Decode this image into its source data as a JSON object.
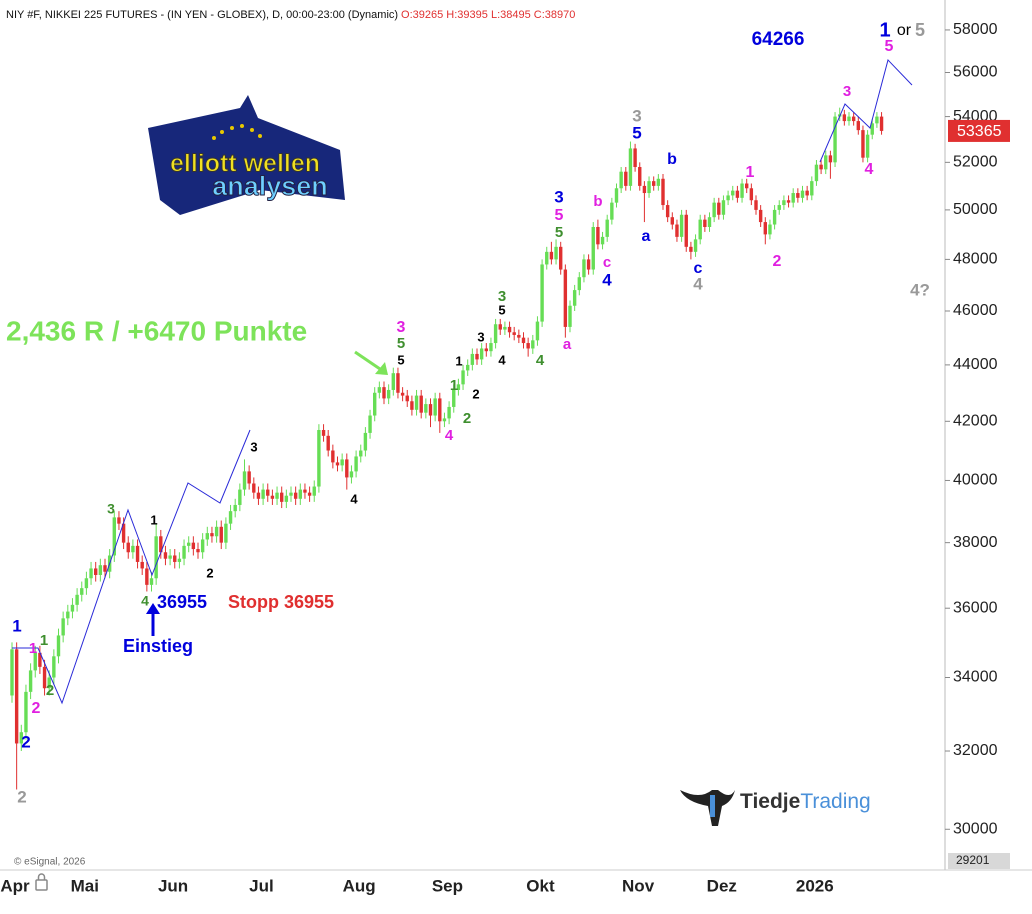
{
  "chart_data": {
    "type": "candlestick",
    "title": "NIY #F, NIKKEI 225 FUTURES - (IN YEN - GLOBEX), D, 00:00-23:00 (Dynamic)",
    "subtitle": "O:39265 H:39395 L:38495 C:38970",
    "credit": "© eSignal, 2026",
    "logo_top": [
      "elliott wellen",
      "analysen"
    ],
    "logo_bottom": [
      "Tiedje",
      "Trading"
    ],
    "log_scale": true,
    "grid": false,
    "up_color": "#66dd55",
    "down_color": "#e03030",
    "ylim": [
      29201,
      59450
    ],
    "yticks": [
      30000,
      32000,
      34000,
      36000,
      38000,
      40000,
      42000,
      44000,
      46000,
      48000,
      50000,
      52000,
      54000,
      56000,
      58000
    ],
    "categories": [
      "Apr",
      null,
      null,
      null,
      null,
      null,
      null,
      null,
      null,
      null,
      null,
      null,
      null,
      null,
      null,
      "Mai",
      null,
      null,
      null,
      null,
      null,
      null,
      null,
      null,
      null,
      null,
      null,
      null,
      null,
      null,
      null,
      null,
      null,
      null,
      "Jun",
      null,
      null,
      null,
      null,
      null,
      null,
      null,
      null,
      null,
      null,
      null,
      null,
      null,
      null,
      null,
      null,
      null,
      null,
      "Jul",
      null,
      null,
      null,
      null,
      null,
      null,
      null,
      null,
      null,
      null,
      null,
      null,
      null,
      null,
      null,
      null,
      null,
      null,
      null,
      null,
      "Aug",
      null,
      null,
      null,
      null,
      null,
      null,
      null,
      null,
      null,
      null,
      null,
      null,
      null,
      null,
      null,
      null,
      null,
      null,
      "Sep",
      null,
      null,
      null,
      null,
      null,
      null,
      null,
      null,
      null,
      null,
      null,
      null,
      null,
      null,
      null,
      null,
      null,
      null,
      null,
      "Okt",
      null,
      null,
      null,
      null,
      null,
      null,
      null,
      null,
      null,
      null,
      null,
      null,
      null,
      null,
      null,
      null,
      null,
      null,
      null,
      null,
      "Nov",
      null,
      null,
      null,
      null,
      null,
      null,
      null,
      null,
      null,
      null,
      null,
      null,
      null,
      null,
      null,
      null,
      null,
      "Dez",
      null,
      null,
      null,
      null,
      null,
      null,
      null,
      null,
      null,
      null,
      null,
      null,
      null,
      null,
      null,
      null,
      null,
      null,
      null,
      "2026",
      null,
      null,
      null,
      null,
      null,
      null,
      null,
      null,
      null,
      null,
      null,
      null,
      null,
      null,
      null
    ],
    "open": [
      33500,
      34800,
      32200,
      32500,
      33600,
      34200,
      34700,
      34300,
      33700,
      34000,
      34600,
      35200,
      35700,
      35900,
      36100,
      36400,
      36600,
      36900,
      37200,
      37000,
      37300,
      37100,
      37600,
      38800,
      38600,
      38000,
      37700,
      37900,
      37400,
      37200,
      36700,
      36900,
      38200,
      37700,
      37500,
      37600,
      37400,
      37500,
      37900,
      38000,
      37800,
      37700,
      38100,
      38300,
      38200,
      38500,
      38000,
      38600,
      39000,
      39200,
      39700,
      40300,
      39900,
      39600,
      39400,
      39700,
      39500,
      39400,
      39600,
      39300,
      39500,
      39600,
      39400,
      39700,
      39600,
      39500,
      39800,
      41700,
      41500,
      41000,
      40600,
      40500,
      40700,
      40100,
      40300,
      40800,
      41000,
      41600,
      42200,
      43000,
      43200,
      42800,
      43100,
      43700,
      43000,
      42900,
      42700,
      42400,
      42900,
      42300,
      42600,
      42200,
      42800,
      42000,
      42100,
      42500,
      43100,
      43300,
      43800,
      44000,
      44400,
      44200,
      44600,
      44500,
      44800,
      45500,
      45300,
      45400,
      45200,
      45100,
      45000,
      44800,
      44600,
      44900,
      45600,
      47800,
      48300,
      48000,
      48500,
      47600,
      45400,
      46200,
      46800,
      47300,
      48000,
      47600,
      49300,
      48600,
      48900,
      49600,
      50300,
      50900,
      51600,
      51000,
      52600,
      51800,
      51000,
      50700,
      51200,
      51000,
      51300,
      50200,
      49700,
      49400,
      48900,
      49800,
      48500,
      48300,
      48800,
      49600,
      49300,
      49700,
      50300,
      49800,
      50400,
      50600,
      50800,
      50500,
      51100,
      50900,
      50400,
      50000,
      49500,
      49000,
      49400,
      50000,
      50200,
      50400,
      50300,
      50700,
      50500,
      50800,
      50600,
      51200,
      51900,
      51700,
      52300,
      52000,
      54000,
      54100,
      53800,
      54000,
      53800,
      53400,
      52200,
      53200,
      53700,
      54000
    ],
    "high": [
      35000,
      35000,
      32700,
      33800,
      34400,
      34900,
      34900,
      34500,
      34200,
      34800,
      35400,
      35900,
      36100,
      36300,
      36600,
      36800,
      37100,
      37400,
      37400,
      37500,
      37500,
      37800,
      39000,
      39000,
      38800,
      38200,
      38100,
      38100,
      37600,
      37400,
      37100,
      38600,
      38400,
      37900,
      37800,
      37800,
      37700,
      38100,
      38200,
      38200,
      38000,
      38300,
      38500,
      38500,
      38700,
      38700,
      38800,
      39200,
      39400,
      39900,
      40700,
      40500,
      40100,
      39800,
      39900,
      39900,
      39700,
      39800,
      39800,
      39700,
      39800,
      39800,
      39900,
      39900,
      39800,
      40000,
      41900,
      41900,
      41700,
      41200,
      40800,
      40900,
      40900,
      40500,
      41000,
      41200,
      41800,
      42400,
      43200,
      43400,
      43400,
      43300,
      43900,
      43900,
      43200,
      43100,
      42900,
      43100,
      43100,
      42800,
      42800,
      43000,
      43000,
      42300,
      42700,
      43300,
      43500,
      44000,
      44200,
      44600,
      44600,
      44800,
      44800,
      45000,
      45700,
      45700,
      45600,
      45600,
      45400,
      45300,
      45200,
      45000,
      45100,
      45800,
      48000,
      48500,
      48700,
      48800,
      48700,
      47800,
      46400,
      47000,
      47500,
      48200,
      48200,
      49500,
      49600,
      49100,
      49800,
      50500,
      51100,
      51800,
      51800,
      52900,
      52800,
      52000,
      51200,
      51400,
      51400,
      51500,
      51500,
      50400,
      49900,
      49600,
      50000,
      50000,
      48700,
      49000,
      49800,
      49800,
      49900,
      50500,
      50500,
      50600,
      50800,
      51000,
      51000,
      51300,
      51300,
      51100,
      50600,
      50200,
      49700,
      49600,
      50200,
      50400,
      50600,
      50600,
      50900,
      50900,
      51000,
      51000,
      51400,
      52100,
      52100,
      52500,
      52500,
      54200,
      54400,
      54300,
      54200,
      54200,
      54000,
      53600,
      53400,
      53900,
      54200,
      54200
    ],
    "low": [
      33300,
      31000,
      32000,
      32300,
      33400,
      34000,
      34100,
      33500,
      33500,
      33800,
      34400,
      35000,
      35500,
      35700,
      35900,
      36200,
      36400,
      36700,
      36800,
      36800,
      36900,
      36900,
      37400,
      38400,
      37800,
      37500,
      37500,
      37200,
      37000,
      36500,
      36500,
      36700,
      37500,
      37300,
      37300,
      37200,
      37200,
      37300,
      37700,
      37600,
      37500,
      37500,
      37900,
      38000,
      38000,
      37800,
      37800,
      38400,
      38800,
      39000,
      39500,
      39700,
      39400,
      39200,
      39200,
      39300,
      39200,
      39200,
      39100,
      39100,
      39300,
      39200,
      39200,
      39400,
      39300,
      39300,
      39600,
      41300,
      40800,
      40400,
      40300,
      40300,
      39700,
      39900,
      40100,
      40600,
      40800,
      41400,
      42000,
      42800,
      42600,
      42600,
      42900,
      42800,
      42700,
      42500,
      42200,
      42200,
      42100,
      42100,
      41800,
      42000,
      41600,
      41800,
      41900,
      42300,
      42900,
      43100,
      43600,
      43800,
      44000,
      44000,
      44300,
      44300,
      44600,
      45100,
      45100,
      45000,
      44900,
      44800,
      44600,
      44300,
      44400,
      44700,
      45400,
      47600,
      47800,
      47800,
      47400,
      45000,
      45200,
      46000,
      46600,
      47100,
      47400,
      47400,
      48400,
      48400,
      48700,
      49400,
      50100,
      50700,
      50800,
      50800,
      51600,
      50800,
      49500,
      50500,
      50800,
      50800,
      50000,
      49500,
      49200,
      48700,
      48700,
      48300,
      48000,
      48100,
      48600,
      49100,
      49100,
      49500,
      49600,
      49600,
      50200,
      50400,
      50300,
      50300,
      50700,
      50200,
      49800,
      49300,
      48600,
      48800,
      49200,
      49800,
      50000,
      50100,
      50100,
      50300,
      50300,
      50400,
      50400,
      51000,
      51500,
      51500,
      51300,
      51800,
      53800,
      53600,
      53600,
      53600,
      53200,
      52000,
      52000,
      53000,
      53500,
      53200
    ],
    "close": [
      34800,
      32200,
      32500,
      33600,
      34200,
      34700,
      34300,
      33700,
      34000,
      34600,
      35200,
      35700,
      35900,
      36100,
      36400,
      36600,
      36900,
      37200,
      37000,
      37300,
      37100,
      37600,
      38800,
      38600,
      38000,
      37700,
      37900,
      37400,
      37200,
      36700,
      36900,
      38200,
      37700,
      37500,
      37600,
      37400,
      37500,
      37900,
      38000,
      37800,
      37700,
      38100,
      38300,
      38200,
      38500,
      38000,
      38600,
      39000,
      39200,
      39700,
      40300,
      39900,
      39600,
      39400,
      39700,
      39500,
      39400,
      39600,
      39300,
      39500,
      39600,
      39400,
      39700,
      39600,
      39500,
      39800,
      41700,
      41500,
      41000,
      40600,
      40500,
      40700,
      40100,
      40300,
      40800,
      41000,
      41600,
      42200,
      43000,
      43200,
      42800,
      43100,
      43700,
      43000,
      42900,
      42700,
      42400,
      42900,
      42300,
      42600,
      42200,
      42800,
      42000,
      42100,
      42500,
      43100,
      43300,
      43800,
      44000,
      44400,
      44200,
      44600,
      44500,
      44800,
      45500,
      45300,
      45400,
      45200,
      45100,
      45000,
      44800,
      44600,
      44900,
      45600,
      47800,
      48300,
      48000,
      48500,
      47600,
      45400,
      46200,
      46800,
      47300,
      48000,
      47600,
      49300,
      48600,
      48900,
      49600,
      50300,
      50900,
      51600,
      51000,
      52600,
      51800,
      51000,
      50700,
      51200,
      51000,
      51300,
      50200,
      49700,
      49400,
      48900,
      49800,
      48500,
      48300,
      48800,
      49600,
      49300,
      49700,
      50300,
      49800,
      50400,
      50600,
      50800,
      50500,
      51100,
      50900,
      50400,
      50000,
      49500,
      49000,
      49400,
      50000,
      50200,
      50400,
      50300,
      50700,
      50500,
      50800,
      50600,
      51200,
      51900,
      51700,
      52300,
      52000,
      54000,
      54100,
      53800,
      54000,
      53800,
      53400,
      52200,
      53200,
      53700,
      54000,
      53365
    ],
    "annotations": [
      {
        "text": "1",
        "color": "#0000dd"
      },
      {
        "text": "1",
        "color": "#e020e0"
      },
      {
        "text": "1",
        "color": "#3f8f2f"
      },
      {
        "text": "2",
        "color": "#e020e0"
      },
      {
        "text": "2",
        "color": "#3f8f2f"
      },
      {
        "text": "2",
        "color": "#0000dd"
      },
      {
        "text": "2",
        "color": "#999999"
      },
      {
        "text": "3",
        "color": "#3f8f2f"
      },
      {
        "text": "4",
        "color": "#3f8f2f"
      },
      {
        "text": "36955",
        "color": "#0000dd"
      },
      {
        "text": "Stopp 36955",
        "color": "#e03030"
      },
      {
        "text": "Einstieg",
        "color": "#0000dd"
      },
      {
        "text": "1",
        "color": "#000000"
      },
      {
        "text": "2",
        "color": "#000000"
      },
      {
        "text": "3",
        "color": "#000000"
      },
      {
        "text": "4",
        "color": "#000000"
      },
      {
        "text": "2,436 R / +6470 Punkte",
        "color": "#7de35a"
      },
      {
        "text": "3",
        "color": "#e020e0"
      },
      {
        "text": "5",
        "color": "#3f8f2f"
      },
      {
        "text": "5",
        "color": "#000000"
      },
      {
        "text": "1",
        "color": "#000000"
      },
      {
        "text": "1",
        "color": "#3f8f2f"
      },
      {
        "text": "2",
        "color": "#000000"
      },
      {
        "text": "2",
        "color": "#3f8f2f"
      },
      {
        "text": "4",
        "color": "#e020e0"
      },
      {
        "text": "3",
        "color": "#000000"
      },
      {
        "text": "3",
        "color": "#3f8f2f"
      },
      {
        "text": "5",
        "color": "#000000"
      },
      {
        "text": "4",
        "color": "#000000"
      },
      {
        "text": "4",
        "color": "#3f8f2f"
      },
      {
        "text": "3",
        "color": "#0000dd"
      },
      {
        "text": "5",
        "color": "#e020e0"
      },
      {
        "text": "5",
        "color": "#3f8f2f"
      },
      {
        "text": "a",
        "color": "#e020e0"
      },
      {
        "text": "b",
        "color": "#e020e0"
      },
      {
        "text": "c",
        "color": "#e020e0"
      },
      {
        "text": "4",
        "color": "#0000dd"
      },
      {
        "text": "3",
        "color": "#999999"
      },
      {
        "text": "5",
        "color": "#0000dd"
      },
      {
        "text": "a",
        "color": "#0000dd"
      },
      {
        "text": "b",
        "color": "#0000dd"
      },
      {
        "text": "c",
        "color": "#0000dd"
      },
      {
        "text": "4",
        "color": "#999999"
      },
      {
        "text": "1",
        "color": "#e020e0"
      },
      {
        "text": "2",
        "color": "#e020e0"
      },
      {
        "text": "3",
        "color": "#e020e0"
      },
      {
        "text": "4",
        "color": "#e020e0"
      },
      {
        "text": "4?",
        "color": "#999999"
      },
      {
        "text": "64266",
        "color": "#0000dd"
      },
      {
        "text": "1",
        "color": "#0000dd"
      },
      {
        "text": "or",
        "color": "#000000"
      },
      {
        "text": "5",
        "color": "#999999"
      },
      {
        "text": "5",
        "color": "#e020e0"
      }
    ]
  }
}
